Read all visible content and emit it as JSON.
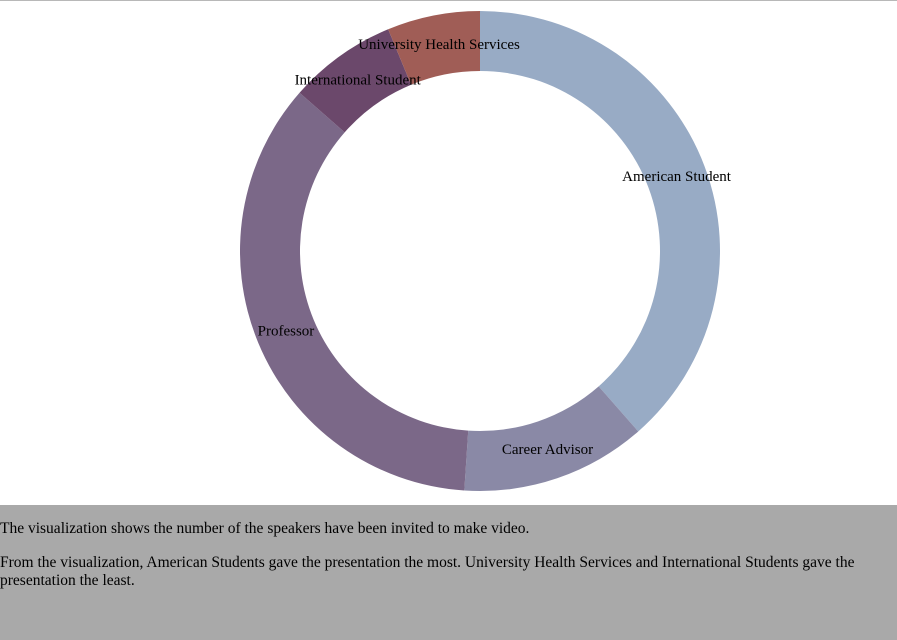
{
  "chart_data": {
    "type": "pie",
    "variant": "donut",
    "title": "",
    "slices": [
      {
        "label": "American Student",
        "value": 37,
        "color": "#98abc5"
      },
      {
        "label": "Career Advisor",
        "value": 12,
        "color": "#8a89a6"
      },
      {
        "label": "Professor",
        "value": 34,
        "color": "#7b6888"
      },
      {
        "label": "International Student",
        "value": 7,
        "color": "#6b486b"
      },
      {
        "label": "University Health Services",
        "value": 6,
        "color": "#a05d56"
      }
    ]
  },
  "description": {
    "line1": "The visualization shows the number of the speakers have been invited to make video.",
    "line2": "From the visualization, American Students gave the presentation the most. University Health Services and International Students gave the presentation the least."
  }
}
